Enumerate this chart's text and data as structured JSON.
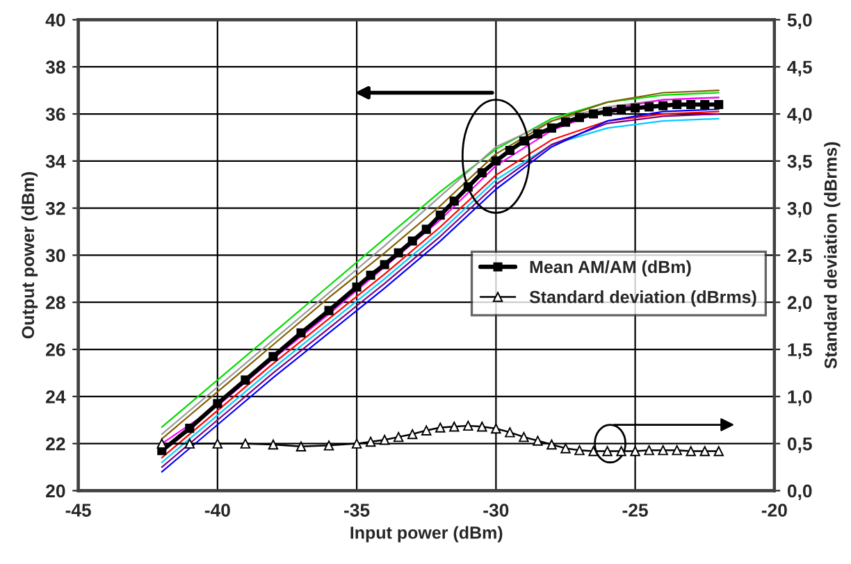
{
  "chart_data": {
    "type": "line",
    "xlabel": "Input power (dBm)",
    "ylabel": "Output power (dBm)",
    "y2label": "Standard deviation (dBrms)",
    "xlim": [
      -45,
      -20
    ],
    "xticks": [
      -45,
      -40,
      -35,
      -30,
      -25,
      -20
    ],
    "ylim": [
      20,
      40
    ],
    "yticks": [
      20,
      22,
      24,
      26,
      28,
      30,
      32,
      34,
      36,
      38,
      40
    ],
    "y2lim": [
      0,
      5
    ],
    "y2ticks": [
      {
        "value": 0,
        "label": "0,0"
      },
      {
        "value": 0.5,
        "label": "0,5"
      },
      {
        "value": 1,
        "label": "1,0"
      },
      {
        "value": 1.5,
        "label": "1,5"
      },
      {
        "value": 2,
        "label": "2,0"
      },
      {
        "value": 2.5,
        "label": "2,5"
      },
      {
        "value": 3,
        "label": "3,0"
      },
      {
        "value": 3.5,
        "label": "3,5"
      },
      {
        "value": 4,
        "label": "4,0"
      },
      {
        "value": 4.5,
        "label": "4,5"
      },
      {
        "value": 5,
        "label": "5,0"
      }
    ],
    "grid": true,
    "legend": "right",
    "series": [
      {
        "color": "#00dd00",
        "marker": "none",
        "x": [
          -42,
          -40,
          -38,
          -36,
          -34,
          -32,
          -30,
          -28,
          -26,
          -24,
          -22
        ],
        "values": [
          22.7,
          24.7,
          26.7,
          28.7,
          30.7,
          32.7,
          34.5,
          35.8,
          36.5,
          36.8,
          36.9
        ]
      },
      {
        "color": "#999999",
        "marker": "none",
        "x": [
          -42,
          -40,
          -38,
          -36,
          -34,
          -32,
          -30,
          -28,
          -26,
          -24,
          -22
        ],
        "values": [
          22.4,
          24.4,
          26.4,
          28.4,
          30.4,
          32.5,
          34.6,
          35.7,
          36.3,
          36.6,
          36.7
        ]
      },
      {
        "color": "#806000",
        "marker": "none",
        "x": [
          -42,
          -40,
          -38,
          -36,
          -34,
          -32,
          -30,
          -28,
          -26,
          -24,
          -22
        ],
        "values": [
          22.2,
          24.2,
          26.2,
          28.2,
          30.1,
          32.1,
          34.3,
          35.7,
          36.5,
          36.9,
          37.0
        ]
      },
      {
        "color": "#ff0000",
        "marker": "none",
        "x": [
          -42,
          -40,
          -38,
          -36,
          -34,
          -32,
          -30,
          -28,
          -26,
          -24,
          -22
        ],
        "values": [
          21.4,
          23.4,
          25.4,
          27.3,
          29.2,
          31.2,
          33.4,
          34.9,
          35.7,
          36.0,
          36.1
        ]
      },
      {
        "color": "#00ccff",
        "marker": "none",
        "x": [
          -42,
          -40,
          -38,
          -36,
          -34,
          -32,
          -30,
          -28,
          -26,
          -24,
          -22
        ],
        "values": [
          21.2,
          23.2,
          25.2,
          27.1,
          29.0,
          31.0,
          33.2,
          34.7,
          35.4,
          35.7,
          35.8
        ]
      },
      {
        "color": "#800080",
        "marker": "none",
        "x": [
          -42,
          -40,
          -38,
          -36,
          -34,
          -32,
          -30,
          -28,
          -26,
          -24,
          -22
        ],
        "values": [
          21.0,
          23.0,
          25.0,
          26.9,
          28.8,
          30.8,
          33.0,
          34.7,
          35.6,
          35.9,
          36.0
        ]
      },
      {
        "color": "#0000ff",
        "marker": "none",
        "x": [
          -42,
          -40,
          -38,
          -36,
          -34,
          -32,
          -30,
          -28,
          -26,
          -24,
          -22
        ],
        "values": [
          20.8,
          22.8,
          24.8,
          26.7,
          28.6,
          30.6,
          32.8,
          34.6,
          35.7,
          36.1,
          36.2
        ]
      },
      {
        "color": "#ff00ff",
        "marker": "none",
        "x": [
          -42,
          -40,
          -38,
          -36,
          -34,
          -32,
          -30,
          -28,
          -26,
          -24,
          -22
        ],
        "values": [
          22.0,
          23.6,
          25.6,
          27.5,
          29.5,
          31.5,
          33.8,
          35.3,
          36.2,
          36.6,
          36.7
        ]
      },
      {
        "name": "Mean AM/AM (dBm)",
        "color": "#000000",
        "marker": "square",
        "x": [
          -42,
          -41,
          -40,
          -39,
          -38,
          -37,
          -36,
          -35,
          -34.5,
          -34,
          -33.5,
          -33,
          -32.5,
          -32,
          -31.5,
          -31,
          -30.5,
          -30,
          -29.5,
          -29,
          -28.5,
          -28,
          -27.5,
          -27,
          -26.5,
          -26,
          -25.5,
          -25,
          -24.5,
          -24,
          -23.5,
          -23,
          -22.5,
          -22
        ],
        "values": [
          21.7,
          22.65,
          23.7,
          24.7,
          25.7,
          26.7,
          27.65,
          28.65,
          29.15,
          29.6,
          30.1,
          30.6,
          31.1,
          31.7,
          32.3,
          32.9,
          33.5,
          34.0,
          34.45,
          34.85,
          35.15,
          35.4,
          35.65,
          35.85,
          36.0,
          36.1,
          36.2,
          36.25,
          36.3,
          36.35,
          36.4,
          36.4,
          36.4,
          36.4
        ]
      },
      {
        "name": "Standard deviation (dBrms)",
        "color": "#000000",
        "marker": "triangle",
        "axis": "y2",
        "x": [
          -42,
          -41,
          -40,
          -39,
          -38,
          -37,
          -36,
          -35,
          -34.5,
          -34,
          -33.5,
          -33,
          -32.5,
          -32,
          -31.5,
          -31,
          -30.5,
          -30,
          -29.5,
          -29,
          -28.5,
          -28,
          -27.5,
          -27,
          -26.5,
          -26,
          -25.5,
          -25,
          -24.5,
          -24,
          -23.5,
          -23,
          -22.5,
          -22
        ],
        "values": [
          0.5,
          0.5,
          0.5,
          0.5,
          0.49,
          0.47,
          0.48,
          0.5,
          0.52,
          0.54,
          0.57,
          0.6,
          0.64,
          0.67,
          0.68,
          0.69,
          0.68,
          0.66,
          0.62,
          0.57,
          0.53,
          0.49,
          0.45,
          0.43,
          0.42,
          0.42,
          0.42,
          0.42,
          0.43,
          0.43,
          0.43,
          0.42,
          0.42,
          0.42
        ]
      }
    ]
  }
}
